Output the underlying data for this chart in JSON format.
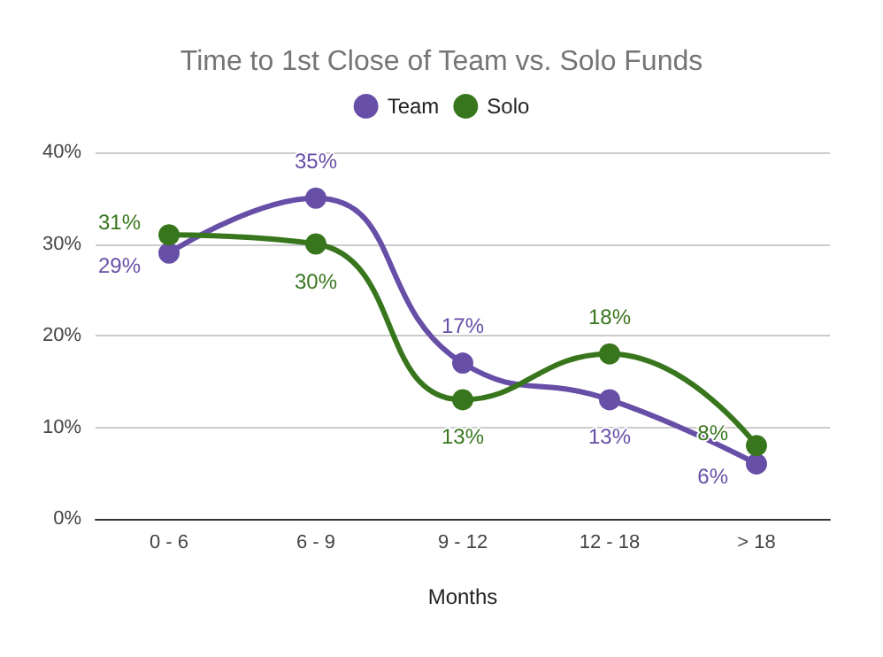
{
  "chart_data": {
    "type": "line",
    "title": "Time to 1st Close of Team vs. Solo Funds",
    "xlabel": "Months",
    "categories": [
      "0 - 6",
      "6 - 9",
      "9 - 12",
      "12 - 18",
      "> 18"
    ],
    "series": [
      {
        "name": "Team",
        "color": "#674ea7",
        "values": [
          29,
          35,
          17,
          13,
          6
        ],
        "value_labels": [
          "29%",
          "35%",
          "17%",
          "13%",
          "6%"
        ]
      },
      {
        "name": "Solo",
        "color": "#38761d",
        "values": [
          31,
          30,
          13,
          18,
          8
        ],
        "value_labels": [
          "31%",
          "30%",
          "13%",
          "18%",
          "8%"
        ]
      }
    ],
    "ylim": [
      0,
      40
    ],
    "yticks": [
      {
        "value": 0,
        "label": "0%"
      },
      {
        "value": 10,
        "label": "10%"
      },
      {
        "value": 20,
        "label": "20%"
      },
      {
        "value": 30,
        "label": "30%"
      },
      {
        "value": 40,
        "label": "40%"
      }
    ],
    "grid": "y",
    "legend": "top",
    "marker": "circle",
    "line_style": "solid"
  }
}
